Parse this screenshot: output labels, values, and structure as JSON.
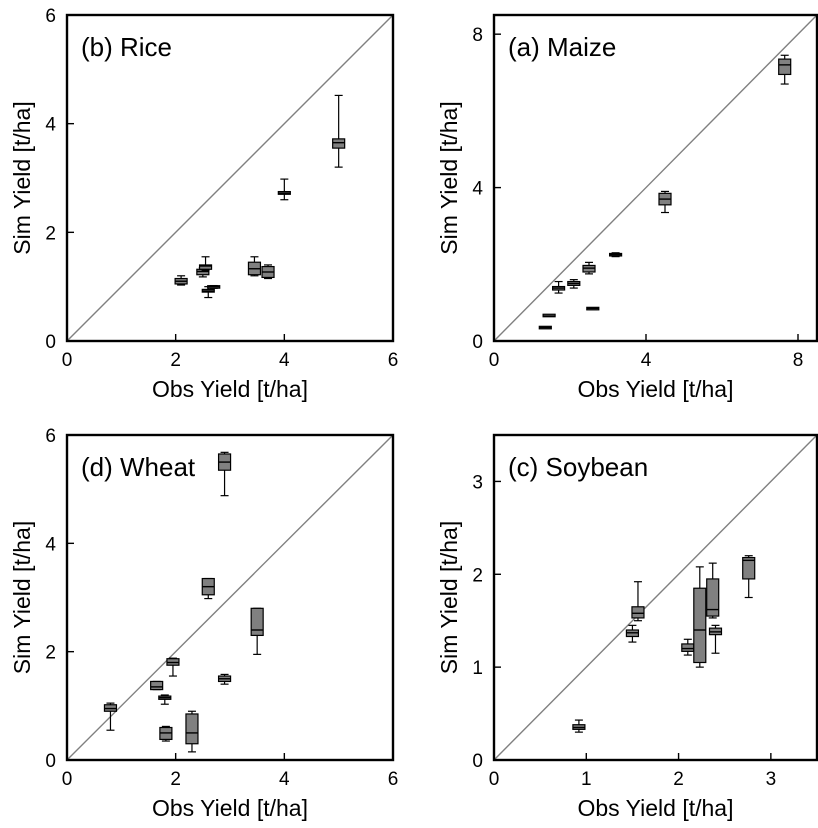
{
  "colors": {
    "box_fill": "#808080",
    "one_to_one_line": "#808080",
    "frame": "#000000"
  },
  "chart_data": [
    {
      "type": "boxplot",
      "panel": "top-left",
      "title": "(b) Rice",
      "xlabel": "Obs Yield [t/ha]",
      "ylabel": "Sim Yield [t/ha]",
      "xlim": [
        0,
        6
      ],
      "ylim": [
        0,
        6
      ],
      "xticks": [
        "0",
        "2",
        "4",
        "6"
      ],
      "yticks": [
        "0",
        "2",
        "4",
        "6"
      ],
      "reference_line": "1:1",
      "boxes": [
        {
          "x": 2.1,
          "min": 1.03,
          "q1": 1.05,
          "median": 1.1,
          "q3": 1.15,
          "max": 1.2
        },
        {
          "x": 2.5,
          "min": 1.18,
          "q1": 1.22,
          "median": 1.28,
          "q3": 1.32,
          "max": 1.35
        },
        {
          "x": 2.55,
          "min": 1.3,
          "q1": 1.32,
          "median": 1.38,
          "q3": 1.4,
          "max": 1.55
        },
        {
          "x": 2.6,
          "min": 0.8,
          "q1": 0.9,
          "median": 0.92,
          "q3": 0.95,
          "max": 1.0
        },
        {
          "x": 2.7,
          "min": 0.97,
          "q1": 0.98,
          "median": 1.0,
          "q3": 1.01,
          "max": 1.02
        },
        {
          "x": 3.45,
          "min": 1.2,
          "q1": 1.22,
          "median": 1.33,
          "q3": 1.45,
          "max": 1.55
        },
        {
          "x": 3.7,
          "min": 1.15,
          "q1": 1.17,
          "median": 1.27,
          "q3": 1.37,
          "max": 1.4
        },
        {
          "x": 4.0,
          "min": 2.6,
          "q1": 2.7,
          "median": 2.72,
          "q3": 2.75,
          "max": 2.98
        },
        {
          "x": 5.0,
          "min": 3.2,
          "q1": 3.55,
          "median": 3.65,
          "q3": 3.72,
          "max": 4.52
        }
      ]
    },
    {
      "type": "boxplot",
      "panel": "top-right",
      "title": "(a) Maize",
      "xlabel": "Obs Yield [t/ha]",
      "ylabel": "Sim Yield [t/ha]",
      "xlim": [
        0,
        8.5
      ],
      "ylim": [
        0,
        8.5
      ],
      "xticks": [
        "0",
        "4",
        "8"
      ],
      "yticks": [
        "0",
        "4",
        "8"
      ],
      "reference_line": "1:1",
      "boxes": [
        {
          "x": 1.35,
          "min": 0.35,
          "q1": 0.35,
          "median": 0.35,
          "q3": 0.35,
          "max": 0.35
        },
        {
          "x": 1.45,
          "min": 0.65,
          "q1": 0.65,
          "median": 0.65,
          "q3": 0.68,
          "max": 0.68
        },
        {
          "x": 1.7,
          "min": 1.25,
          "q1": 1.33,
          "median": 1.38,
          "q3": 1.42,
          "max": 1.55
        },
        {
          "x": 2.1,
          "min": 1.38,
          "q1": 1.45,
          "median": 1.5,
          "q3": 1.55,
          "max": 1.6
        },
        {
          "x": 2.5,
          "min": 1.75,
          "q1": 1.8,
          "median": 1.9,
          "q3": 1.97,
          "max": 2.05
        },
        {
          "x": 2.6,
          "min": 0.82,
          "q1": 0.82,
          "median": 0.85,
          "q3": 0.87,
          "max": 0.87
        },
        {
          "x": 3.2,
          "min": 2.2,
          "q1": 2.22,
          "median": 2.25,
          "q3": 2.28,
          "max": 2.3
        },
        {
          "x": 4.5,
          "min": 3.35,
          "q1": 3.55,
          "median": 3.7,
          "q3": 3.85,
          "max": 3.9
        },
        {
          "x": 7.65,
          "min": 6.7,
          "q1": 6.95,
          "median": 7.2,
          "q3": 7.35,
          "max": 7.45
        }
      ]
    },
    {
      "type": "boxplot",
      "panel": "bottom-left",
      "title": "(d) Wheat",
      "xlabel": "Obs Yield [t/ha]",
      "ylabel": "Sim Yield [t/ha]",
      "xlim": [
        0,
        6
      ],
      "ylim": [
        0,
        6
      ],
      "xticks": [
        "0",
        "2",
        "4",
        "6"
      ],
      "yticks": [
        "0",
        "2",
        "4",
        "6"
      ],
      "reference_line": "1:1",
      "boxes": [
        {
          "x": 0.8,
          "min": 0.55,
          "q1": 0.9,
          "median": 0.95,
          "q3": 1.02,
          "max": 1.05
        },
        {
          "x": 1.65,
          "min": 1.3,
          "q1": 1.3,
          "median": 1.35,
          "q3": 1.45,
          "max": 1.45
        },
        {
          "x": 1.8,
          "min": 1.03,
          "q1": 1.12,
          "median": 1.15,
          "q3": 1.18,
          "max": 1.2
        },
        {
          "x": 1.82,
          "min": 0.35,
          "q1": 0.38,
          "median": 0.5,
          "q3": 0.6,
          "max": 0.62
        },
        {
          "x": 1.95,
          "min": 1.55,
          "q1": 1.75,
          "median": 1.8,
          "q3": 1.87,
          "max": 1.88
        },
        {
          "x": 2.3,
          "min": 0.15,
          "q1": 0.3,
          "median": 0.5,
          "q3": 0.85,
          "max": 0.9
        },
        {
          "x": 2.6,
          "min": 2.98,
          "q1": 3.05,
          "median": 3.2,
          "q3": 3.35,
          "max": 3.35
        },
        {
          "x": 2.9,
          "min": 1.4,
          "q1": 1.45,
          "median": 1.5,
          "q3": 1.55,
          "max": 1.58
        },
        {
          "x": 2.9,
          "min": 4.88,
          "q1": 5.35,
          "median": 5.5,
          "q3": 5.65,
          "max": 5.68
        },
        {
          "x": 3.5,
          "min": 1.95,
          "q1": 2.3,
          "median": 2.4,
          "q3": 2.8,
          "max": 2.8
        }
      ]
    },
    {
      "type": "boxplot",
      "panel": "bottom-right",
      "title": "(c) Soybean",
      "xlabel": "Obs Yield [t/ha]",
      "ylabel": "Sim Yield [t/ha]",
      "xlim": [
        0,
        3.5
      ],
      "ylim": [
        0,
        3.5
      ],
      "xticks": [
        "0",
        "1",
        "2",
        "3"
      ],
      "yticks": [
        "0",
        "1",
        "2",
        "3"
      ],
      "reference_line": "1:1",
      "boxes": [
        {
          "x": 0.92,
          "min": 0.3,
          "q1": 0.33,
          "median": 0.35,
          "q3": 0.38,
          "max": 0.43
        },
        {
          "x": 1.5,
          "min": 1.27,
          "q1": 1.33,
          "median": 1.37,
          "q3": 1.4,
          "max": 1.45
        },
        {
          "x": 1.56,
          "min": 1.5,
          "q1": 1.53,
          "median": 1.58,
          "q3": 1.65,
          "max": 1.92
        },
        {
          "x": 2.1,
          "min": 1.13,
          "q1": 1.17,
          "median": 1.2,
          "q3": 1.25,
          "max": 1.3
        },
        {
          "x": 2.23,
          "min": 1.0,
          "q1": 1.05,
          "median": 1.4,
          "q3": 1.85,
          "max": 2.08
        },
        {
          "x": 2.37,
          "min": 1.53,
          "q1": 1.55,
          "median": 1.62,
          "q3": 1.95,
          "max": 2.12
        },
        {
          "x": 2.4,
          "min": 1.15,
          "q1": 1.35,
          "median": 1.38,
          "q3": 1.42,
          "max": 1.45
        },
        {
          "x": 2.76,
          "min": 1.75,
          "q1": 1.95,
          "median": 2.15,
          "q3": 2.18,
          "max": 2.2
        }
      ]
    }
  ]
}
